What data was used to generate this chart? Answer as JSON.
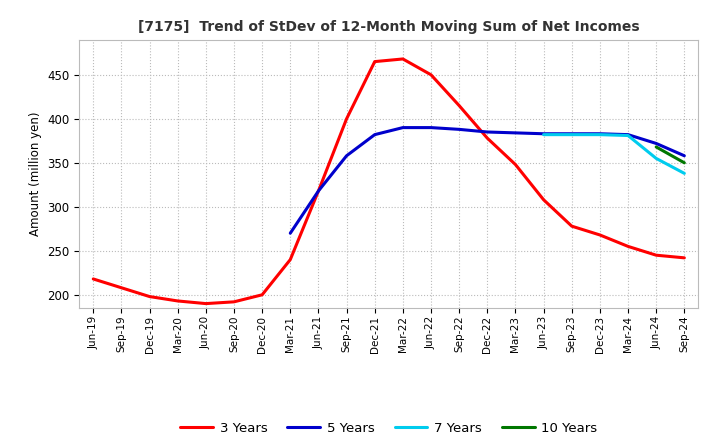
{
  "title": "[7175]  Trend of StDev of 12-Month Moving Sum of Net Incomes",
  "ylabel": "Amount (million yen)",
  "ylim": [
    185,
    490
  ],
  "yticks": [
    200,
    250,
    300,
    350,
    400,
    450
  ],
  "background_color": "#ffffff",
  "grid_color": "#bbbbbb",
  "line_colors": {
    "3 Years": "#ff0000",
    "5 Years": "#0000cc",
    "7 Years": "#00ccee",
    "10 Years": "#007700"
  },
  "x_labels": [
    "Jun-19",
    "Sep-19",
    "Dec-19",
    "Mar-20",
    "Jun-20",
    "Sep-20",
    "Dec-20",
    "Mar-21",
    "Jun-21",
    "Sep-21",
    "Dec-21",
    "Mar-22",
    "Jun-22",
    "Sep-22",
    "Dec-22",
    "Mar-23",
    "Jun-23",
    "Sep-23",
    "Dec-23",
    "Mar-24",
    "Jun-24",
    "Sep-24"
  ],
  "s3": [
    218,
    208,
    198,
    193,
    190,
    192,
    200,
    240,
    318,
    400,
    465,
    468,
    450,
    415,
    378,
    348,
    308,
    278,
    268,
    255,
    245,
    242
  ],
  "s5": [
    null,
    null,
    null,
    null,
    null,
    null,
    null,
    270,
    318,
    358,
    382,
    390,
    390,
    388,
    385,
    384,
    383,
    383,
    383,
    382,
    372,
    358
  ],
  "s7": [
    null,
    null,
    null,
    null,
    null,
    null,
    null,
    null,
    null,
    null,
    null,
    null,
    null,
    null,
    null,
    null,
    382,
    382,
    382,
    381,
    355,
    338
  ],
  "s10": [
    null,
    null,
    null,
    null,
    null,
    null,
    null,
    null,
    null,
    null,
    null,
    null,
    null,
    null,
    null,
    null,
    null,
    null,
    null,
    null,
    368,
    350
  ]
}
